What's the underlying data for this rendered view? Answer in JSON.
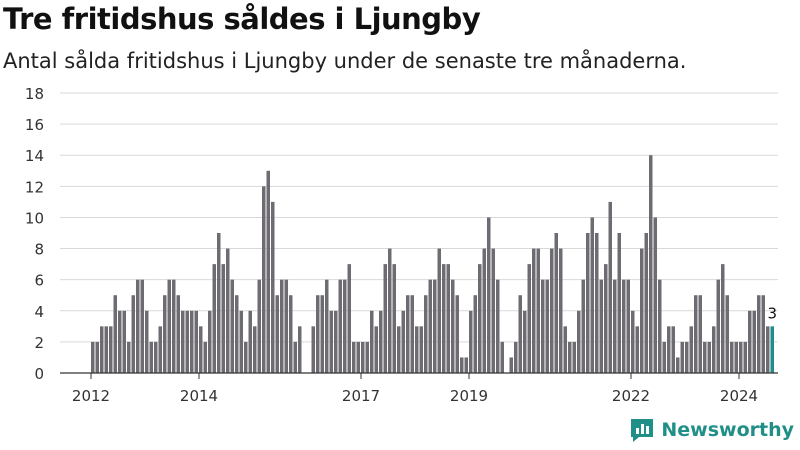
{
  "title": "Tre fritidshus såldes i Ljungby",
  "subtitle": "Antal sålda fritidshus i Ljungby under de senaste tre månaderna.",
  "brand": {
    "name": "Newsworthy",
    "logo_icon": "newsworthy-logo-icon"
  },
  "colors": {
    "bar": "#6e6c72",
    "highlight": "#1f8f88",
    "grid": "#d9d9d9",
    "axis": "#333333",
    "brand": "#1f8f88"
  },
  "chart_data": {
    "type": "bar",
    "title": "Tre fritidshus såldes i Ljungby",
    "xlabel": "",
    "ylabel": "",
    "x_start": "2012-01",
    "x_end": "2024-12",
    "x_ticks": [
      "2012",
      "2014",
      "2017",
      "2019",
      "2022",
      "2024"
    ],
    "y_ticks": [
      0,
      2,
      4,
      6,
      8,
      10,
      12,
      14,
      16,
      18
    ],
    "ylim": [
      0,
      18
    ],
    "grid": true,
    "highlight_last": true,
    "last_value_label": "3",
    "values": [
      2,
      2,
      3,
      3,
      3,
      5,
      4,
      4,
      2,
      5,
      6,
      6,
      4,
      2,
      2,
      3,
      5,
      6,
      6,
      5,
      4,
      4,
      4,
      4,
      3,
      2,
      4,
      7,
      9,
      7,
      8,
      6,
      5,
      4,
      2,
      4,
      3,
      6,
      12,
      13,
      11,
      5,
      6,
      6,
      5,
      2,
      3,
      0,
      0,
      3,
      5,
      5,
      6,
      4,
      4,
      6,
      6,
      7,
      2,
      2,
      2,
      2,
      4,
      3,
      4,
      7,
      8,
      7,
      3,
      4,
      5,
      5,
      3,
      3,
      5,
      6,
      6,
      8,
      7,
      7,
      6,
      5,
      1,
      1,
      4,
      5,
      7,
      8,
      10,
      8,
      6,
      2,
      0,
      1,
      2,
      5,
      4,
      7,
      8,
      8,
      6,
      6,
      8,
      9,
      8,
      3,
      2,
      2,
      4,
      6,
      9,
      10,
      9,
      6,
      7,
      11,
      6,
      9,
      6,
      6,
      4,
      3,
      8,
      9,
      14,
      10,
      6,
      2,
      3,
      3,
      1,
      2,
      2,
      3,
      5,
      5,
      2,
      2,
      3,
      6,
      7,
      5,
      2,
      2,
      2,
      2,
      4,
      4,
      5,
      5,
      3,
      3
    ]
  }
}
